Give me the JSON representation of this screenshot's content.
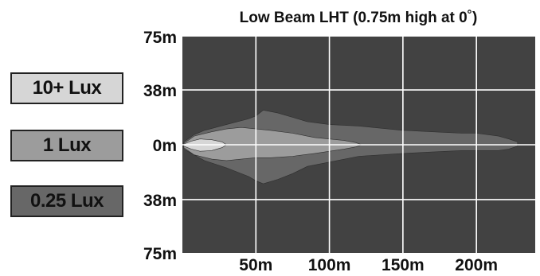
{
  "chart_data": {
    "type": "heatmap",
    "title": "Low Beam LHT (0.75m high at 0˚)",
    "x_tick_labels": [
      "50m",
      "100m",
      "150m",
      "200m"
    ],
    "x_ticks": [
      50,
      100,
      150,
      200
    ],
    "y_tick_labels": [
      "75m",
      "38m",
      "0m",
      "38m",
      "75m"
    ],
    "y_ticks": [
      75,
      38,
      0,
      -38,
      -75
    ],
    "xlim": [
      0,
      240
    ],
    "ylim": [
      -75,
      75
    ],
    "grid": true,
    "legend_position": "left",
    "legend": [
      {
        "label": "10+ Lux",
        "color": "#d6d6d6"
      },
      {
        "label": "1 Lux",
        "color": "#9c9c9c"
      },
      {
        "label": "0.25 Lux",
        "color": "#676767"
      }
    ],
    "background_color": "#424242",
    "contours": [
      {
        "level": "0.25 Lux",
        "color": "#676767",
        "upper": [
          [
            1,
            2
          ],
          [
            8,
            7
          ],
          [
            15,
            10
          ],
          [
            30,
            14
          ],
          [
            45,
            18
          ],
          [
            50,
            20
          ],
          [
            55,
            24
          ],
          [
            65,
            22
          ],
          [
            75,
            19
          ],
          [
            85,
            16
          ],
          [
            100,
            14
          ],
          [
            120,
            13
          ],
          [
            150,
            10
          ],
          [
            170,
            9
          ],
          [
            190,
            8
          ],
          [
            200,
            8
          ],
          [
            215,
            6
          ],
          [
            222,
            4
          ],
          [
            228,
            2
          ]
        ],
        "lower": [
          [
            228,
            -1
          ],
          [
            222,
            -3
          ],
          [
            215,
            -4
          ],
          [
            200,
            -4
          ],
          [
            190,
            -4
          ],
          [
            170,
            -5
          ],
          [
            150,
            -6
          ],
          [
            120,
            -8
          ],
          [
            100,
            -12
          ],
          [
            85,
            -15
          ],
          [
            75,
            -20
          ],
          [
            65,
            -24
          ],
          [
            55,
            -27
          ],
          [
            50,
            -25
          ],
          [
            45,
            -22
          ],
          [
            30,
            -16
          ],
          [
            15,
            -11
          ],
          [
            8,
            -7
          ],
          [
            1,
            -3
          ]
        ]
      },
      {
        "level": "1 Lux",
        "color": "#9c9c9c",
        "upper": [
          [
            1,
            1
          ],
          [
            8,
            6
          ],
          [
            20,
            9
          ],
          [
            30,
            11
          ],
          [
            40,
            12
          ],
          [
            50,
            11
          ],
          [
            60,
            10
          ],
          [
            75,
            8
          ],
          [
            90,
            5
          ],
          [
            110,
            3
          ],
          [
            118,
            1.5
          ],
          [
            122,
            0
          ]
        ],
        "lower": [
          [
            118,
            -1.5
          ],
          [
            110,
            -3
          ],
          [
            90,
            -6
          ],
          [
            75,
            -8
          ],
          [
            60,
            -9
          ],
          [
            50,
            -9
          ],
          [
            40,
            -10
          ],
          [
            30,
            -11
          ],
          [
            20,
            -10
          ],
          [
            8,
            -7
          ],
          [
            1,
            -2
          ]
        ]
      },
      {
        "level": "10+ Lux",
        "color": "#d6d6d6",
        "upper": [
          [
            1,
            0.5
          ],
          [
            6,
            2.5
          ],
          [
            12,
            4
          ],
          [
            20,
            3.5
          ],
          [
            27,
            2
          ],
          [
            30,
            0
          ]
        ],
        "lower": [
          [
            27,
            -2
          ],
          [
            20,
            -4
          ],
          [
            12,
            -4.5
          ],
          [
            6,
            -3
          ],
          [
            1,
            -1
          ]
        ]
      }
    ]
  }
}
